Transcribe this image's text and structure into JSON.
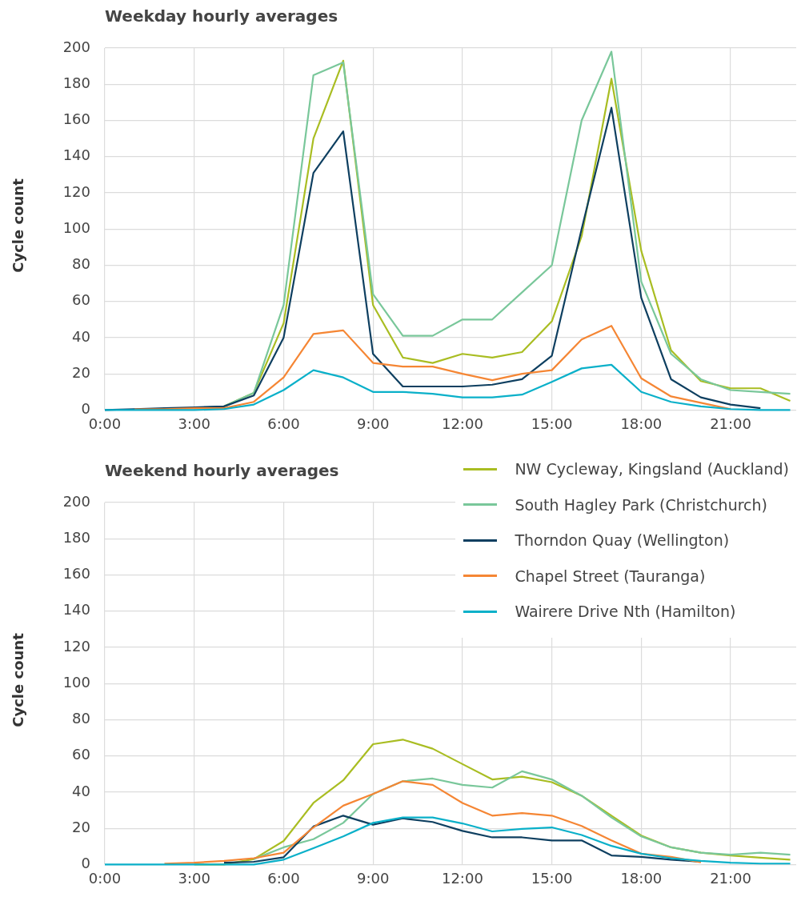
{
  "chart_data": [
    {
      "type": "line",
      "title": "Weekday hourly averages",
      "ylabel": "Cycle count",
      "x": [
        0,
        1,
        2,
        3,
        4,
        5,
        6,
        7,
        8,
        9,
        10,
        11,
        12,
        13,
        14,
        15,
        16,
        17,
        18,
        19,
        20,
        21,
        22,
        23
      ],
      "xlim": [
        0,
        23.2
      ],
      "xticks": [
        {
          "value": 0,
          "label": "0:00"
        },
        {
          "value": 3,
          "label": "3:00"
        },
        {
          "value": 6,
          "label": "6:00"
        },
        {
          "value": 9,
          "label": "9:00"
        },
        {
          "value": 12,
          "label": "12:00"
        },
        {
          "value": 15,
          "label": "15:00"
        },
        {
          "value": 18,
          "label": "18:00"
        },
        {
          "value": 21,
          "label": "21:00"
        }
      ],
      "ylim": [
        0,
        200
      ],
      "yticks": [
        0,
        20,
        40,
        60,
        80,
        100,
        120,
        140,
        160,
        180,
        200
      ],
      "grid": true,
      "legend": false,
      "marker": "none",
      "line_style": "solid",
      "series": [
        {
          "color": "#a9bd22",
          "values": [
            null,
            null,
            null,
            null,
            2,
            9.5,
            48,
            150,
            193,
            58,
            29,
            26,
            31,
            29,
            32,
            49,
            96,
            183,
            88,
            33,
            16,
            12,
            12,
            5
          ]
        },
        {
          "color": "#79c79a",
          "values": [
            null,
            null,
            null,
            1,
            2,
            9.5,
            58,
            185,
            192,
            64,
            41,
            41,
            50,
            50,
            65,
            80,
            160,
            198,
            71,
            31,
            17,
            11,
            10,
            9
          ]
        },
        {
          "color": "#0e3f60",
          "values": [
            0,
            0.5,
            1,
            1.5,
            2,
            8,
            40,
            131,
            154,
            31,
            13,
            13,
            13,
            14,
            17,
            30,
            100,
            167,
            62,
            17,
            7,
            3,
            1,
            null
          ]
        },
        {
          "color": "#f58634",
          "values": [
            null,
            0.3,
            0.5,
            1,
            1,
            4.5,
            18,
            42,
            44,
            26,
            24,
            24,
            20,
            16.5,
            20,
            22,
            39,
            46.5,
            17.5,
            7.5,
            4,
            0.5,
            null,
            null
          ]
        },
        {
          "color": "#0ab0c9",
          "values": [
            0,
            0,
            0,
            0,
            0.5,
            3,
            11,
            22,
            18,
            10,
            10,
            9,
            7,
            7,
            8.5,
            15.5,
            23,
            25,
            10,
            4.5,
            2,
            0.5,
            0,
            0
          ]
        }
      ]
    },
    {
      "type": "line",
      "title": "Weekend hourly averages",
      "ylabel": "Cycle count",
      "x": [
        0,
        1,
        2,
        3,
        4,
        5,
        6,
        7,
        8,
        9,
        10,
        11,
        12,
        13,
        14,
        15,
        16,
        17,
        18,
        19,
        20,
        21,
        22,
        23
      ],
      "xlim": [
        0,
        23.2
      ],
      "xticks": [
        {
          "value": 0,
          "label": "0:00"
        },
        {
          "value": 3,
          "label": "3:00"
        },
        {
          "value": 6,
          "label": "6:00"
        },
        {
          "value": 9,
          "label": "9:00"
        },
        {
          "value": 12,
          "label": "12:00"
        },
        {
          "value": 15,
          "label": "15:00"
        },
        {
          "value": 18,
          "label": "18:00"
        },
        {
          "value": 21,
          "label": "21:00"
        }
      ],
      "ylim": [
        0,
        200
      ],
      "yticks": [
        0,
        20,
        40,
        60,
        80,
        100,
        120,
        140,
        160,
        180,
        200
      ],
      "grid": true,
      "legend": "top right",
      "marker": "none",
      "line_style": "solid",
      "series": [
        {
          "name": "NW Cycleway, Kingsland (Auckland)",
          "color": "#a9bd22",
          "values": [
            null,
            null,
            null,
            0,
            0,
            3,
            13,
            34,
            46.5,
            66.5,
            69,
            64,
            55.5,
            47,
            48.5,
            45.5,
            38,
            27,
            16,
            9.5,
            6.5,
            5,
            3.8,
            2.7
          ]
        },
        {
          "name": "South Hagley Park (Christchurch)",
          "color": "#79c79a",
          "values": [
            null,
            null,
            null,
            null,
            null,
            3,
            9.5,
            14,
            23,
            39,
            46,
            47.5,
            44,
            42.5,
            51.5,
            47,
            38,
            26,
            15.5,
            9.5,
            6.5,
            5.4,
            6.5,
            5.4
          ]
        },
        {
          "name": "Thorndon Quay (Wellington)",
          "color": "#0e3f60",
          "values": [
            null,
            null,
            null,
            null,
            1,
            1.5,
            4,
            21,
            27,
            22,
            25.5,
            23.5,
            18.6,
            15,
            15,
            13.3,
            13.3,
            5,
            4.2,
            2.7,
            1.5,
            null,
            null,
            null
          ]
        },
        {
          "name": "Chapel Street (Tauranga)",
          "color": "#f58634",
          "values": [
            null,
            null,
            0.5,
            1,
            2,
            3.5,
            6.5,
            20.5,
            32.5,
            39,
            46,
            44,
            34,
            27,
            28.4,
            27,
            21.3,
            13.3,
            6,
            4.2,
            1.2,
            null,
            null,
            null
          ]
        },
        {
          "name": "Wairere Drive Nth (Hamilton)",
          "color": "#0ab0c9",
          "values": [
            0,
            0,
            0,
            0,
            0,
            0,
            2.7,
            9,
            15.5,
            23,
            26,
            26,
            22.7,
            18.3,
            19.7,
            20.5,
            16.3,
            10.3,
            6,
            3.5,
            2,
            1,
            0.5,
            0.5
          ]
        }
      ]
    }
  ]
}
